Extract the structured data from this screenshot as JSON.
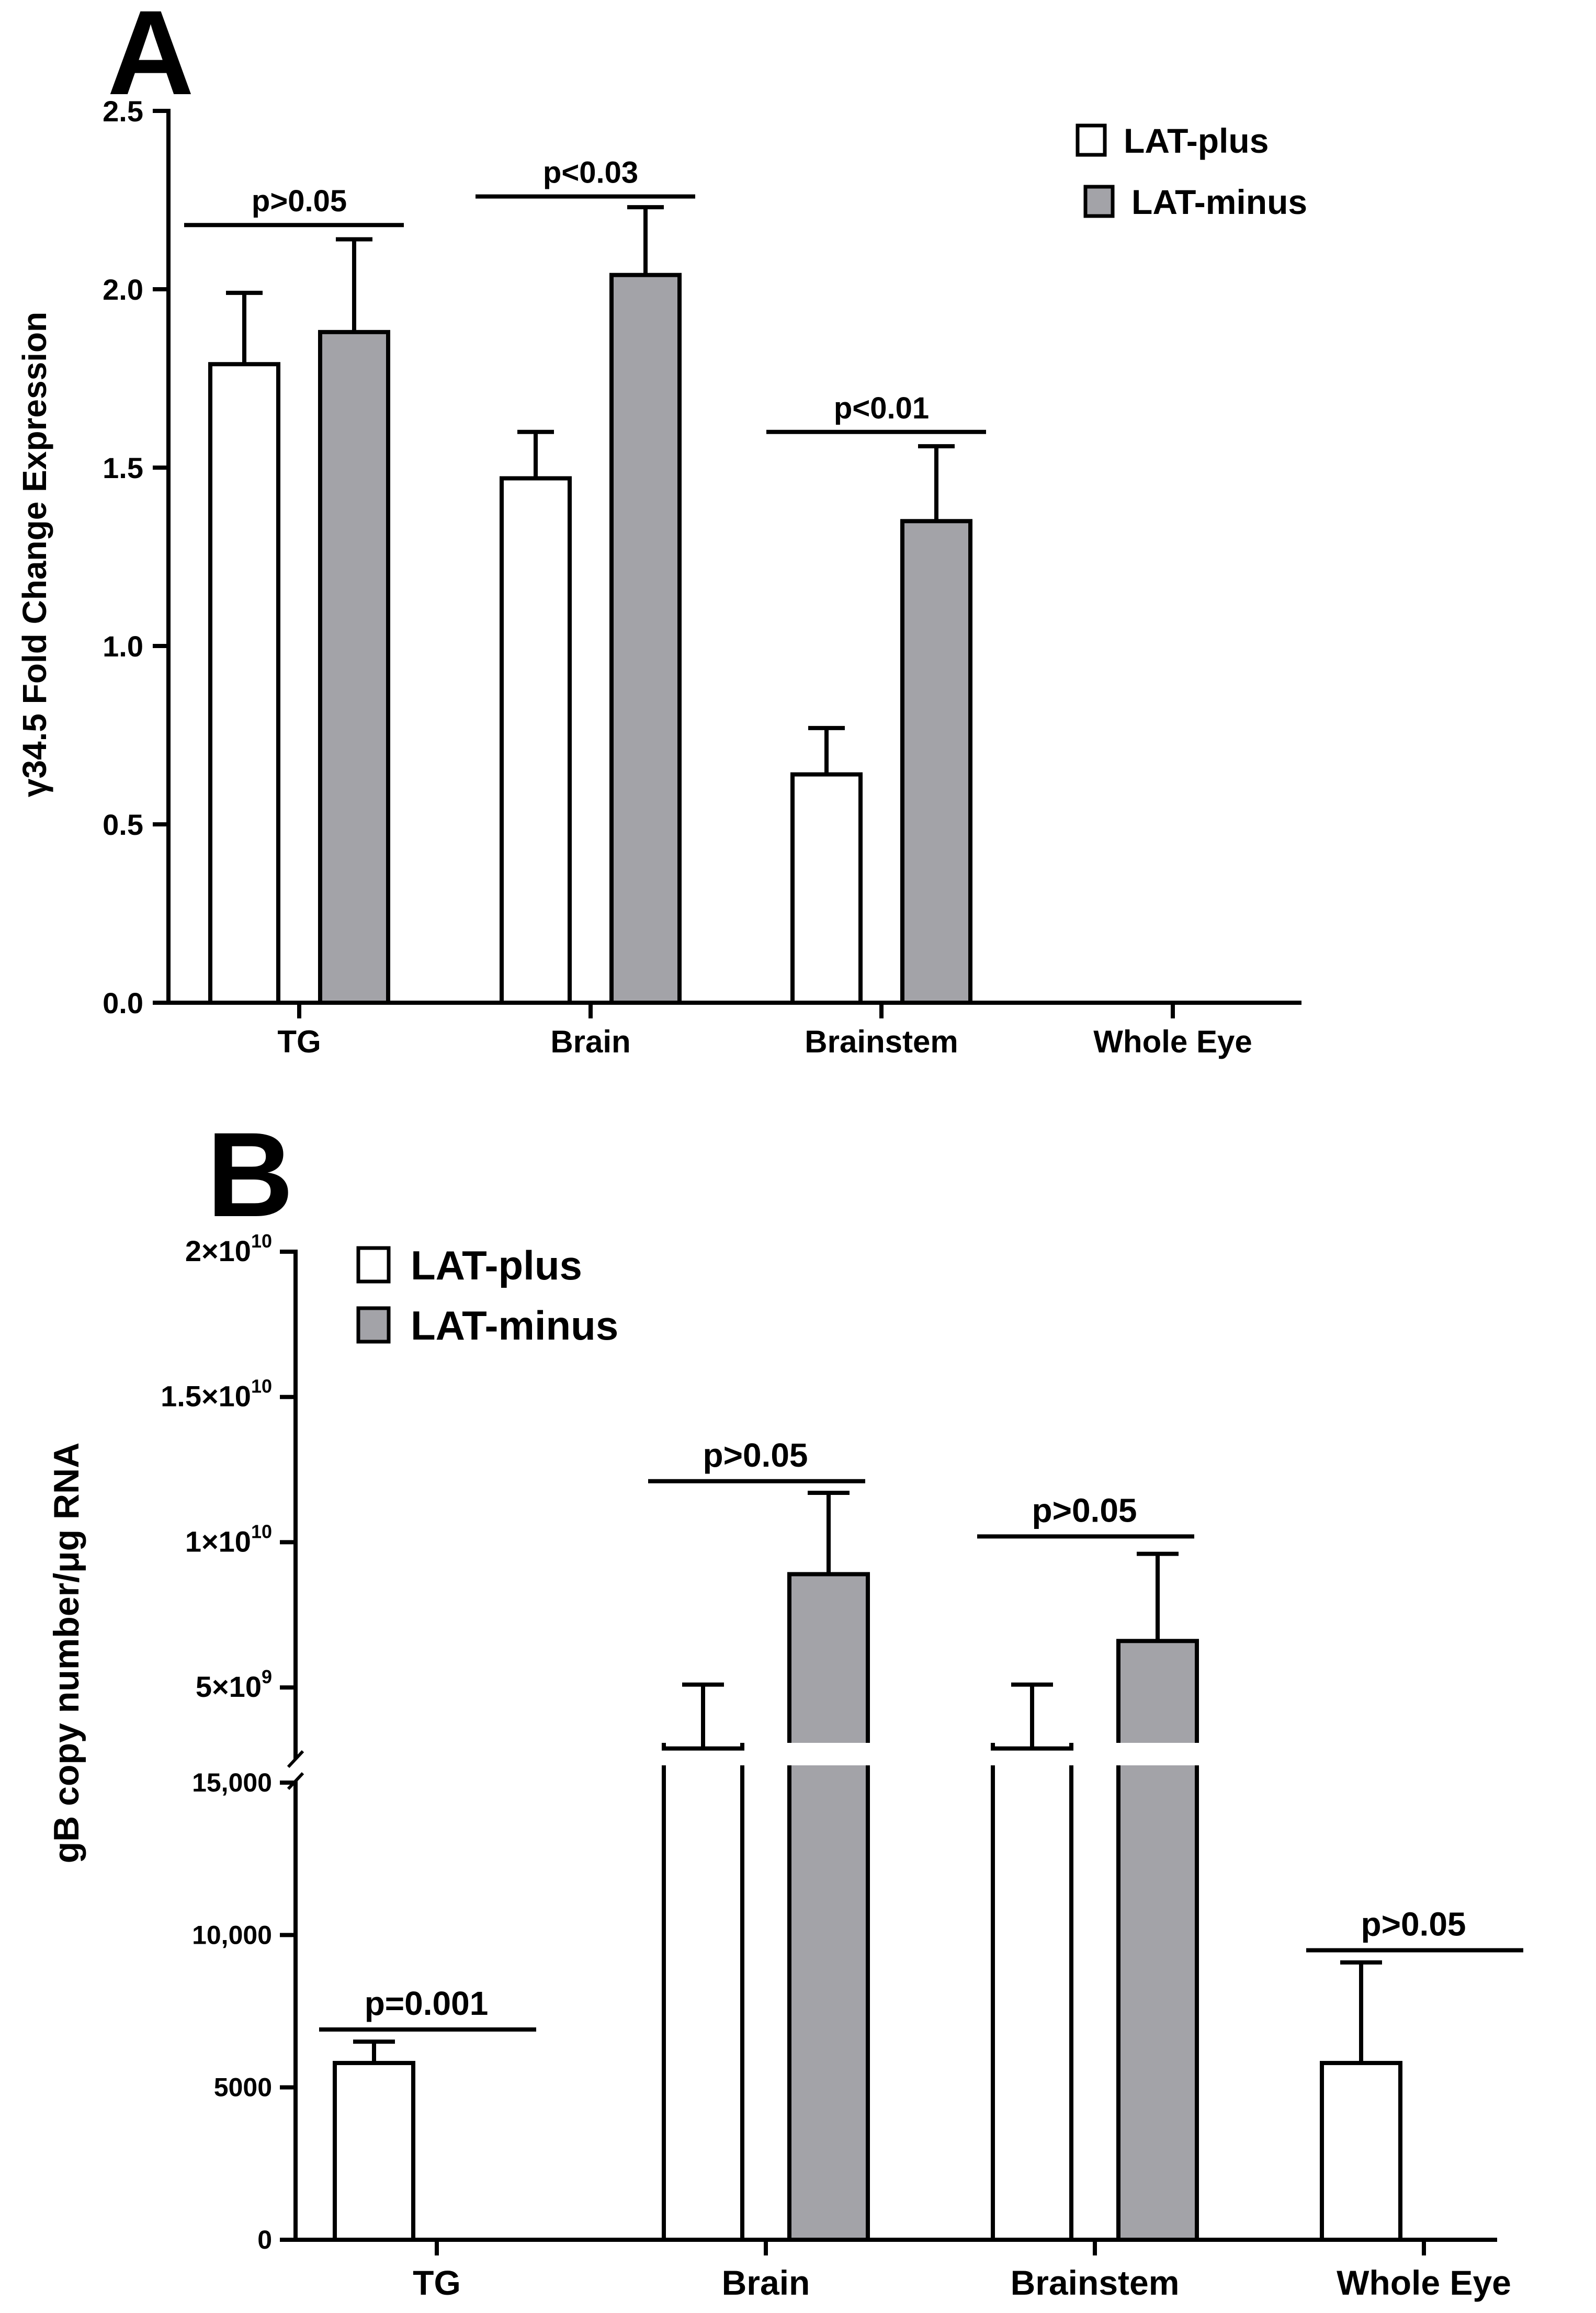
{
  "colors": {
    "lat_plus_fill": "#ffffff",
    "lat_minus_fill": "#a3a3a8",
    "stroke": "#000000"
  },
  "chart_data": [
    {
      "panel": "A",
      "type": "bar",
      "ylabel": "γ34.5 Fold Change Expression",
      "xlabel": "",
      "ylim": [
        0,
        2.5
      ],
      "ytick_values": [
        0,
        0.5,
        1.0,
        1.5,
        2.0,
        2.5
      ],
      "ytick_labels": [
        "0.0",
        "0.5",
        "1.0",
        "1.5",
        "2.0",
        "2.5"
      ],
      "categories": [
        "TG",
        "Brain",
        "Brainstem",
        "Whole Eye"
      ],
      "series": [
        {
          "name": "LAT-plus",
          "values": [
            1.79,
            1.47,
            0.64,
            null
          ],
          "errors": [
            0.2,
            0.13,
            0.13,
            null
          ]
        },
        {
          "name": "LAT-minus",
          "values": [
            1.88,
            2.04,
            1.35,
            null
          ],
          "errors": [
            0.26,
            0.19,
            0.21,
            null
          ]
        }
      ],
      "annotations": [
        {
          "category": "TG",
          "text": "p>0.05",
          "y": 2.18
        },
        {
          "category": "Brain",
          "text": "p<0.03",
          "y": 2.26
        },
        {
          "category": "Brainstem",
          "text": "p<0.01",
          "y": 1.6
        }
      ],
      "legend": {
        "position": "top-right",
        "entries": [
          "LAT-plus",
          "LAT-minus"
        ]
      }
    },
    {
      "panel": "B",
      "type": "bar",
      "ylabel": "gB copy number/μg RNA",
      "xlabel": "",
      "axis_break": true,
      "lower_segment": {
        "ylim": [
          0,
          15000
        ],
        "ytick_values": [
          0,
          5000,
          10000,
          15000
        ],
        "ytick_labels": [
          "0",
          "5000",
          "10,000",
          "15,000"
        ]
      },
      "upper_segment": {
        "ylim": [
          2500000000,
          20000000000
        ],
        "ytick_values": [
          5000000000,
          10000000000,
          15000000000,
          20000000000
        ],
        "ytick_labels": [
          {
            "base": "5×10",
            "exp": "9"
          },
          {
            "base": "1×10",
            "exp": "10"
          },
          {
            "base": "1.5×10",
            "exp": "10"
          },
          {
            "base": "2×10",
            "exp": "10"
          }
        ]
      },
      "categories": [
        "TG",
        "Brain",
        "Brainstem",
        "Whole Eye"
      ],
      "series": [
        {
          "name": "LAT-plus",
          "values": [
            5800,
            2900000000,
            2900000000,
            5800
          ],
          "errors": [
            700,
            2200000000,
            2200000000,
            3300
          ]
        },
        {
          "name": "LAT-minus",
          "values": [
            null,
            8900000000,
            6600000000,
            null
          ],
          "errors": [
            null,
            2800000000,
            3000000000,
            null
          ]
        }
      ],
      "annotations": [
        {
          "category": "TG",
          "text": "p=0.001",
          "y": 6900
        },
        {
          "category": "Brain",
          "text": "p>0.05",
          "y": 12100000000
        },
        {
          "category": "Brainstem",
          "text": "p>0.05",
          "y": 10200000000
        },
        {
          "category": "Whole Eye",
          "text": "p>0.05",
          "y": 9500
        }
      ],
      "legend": {
        "position": "top-left",
        "entries": [
          "LAT-plus",
          "LAT-minus"
        ]
      }
    }
  ]
}
